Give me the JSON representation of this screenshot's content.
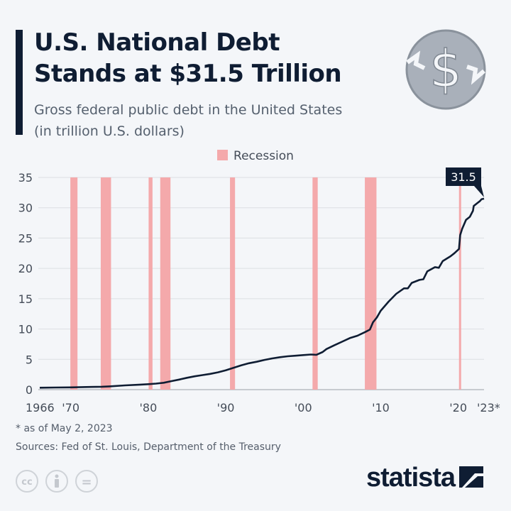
{
  "header": {
    "title_line1": "U.S. National Debt",
    "title_line2": "Stands at $31.5 Trillion",
    "subtitle_line1": "Gross federal public debt in the United States",
    "subtitle_line2": "(in trillion U.S. dollars)",
    "icon": "dollar-coin-icon"
  },
  "colors": {
    "title": "#0f1d33",
    "line": "#0f1d33",
    "recession": "#f4a9ab",
    "grid": "#dcdfe3"
  },
  "chart_data": {
    "type": "line",
    "title": "U.S. National Debt Stands at $31.5 Trillion",
    "subtitle": "Gross federal public debt in the United States (in trillion U.S. dollars)",
    "legend": [
      {
        "name": "Recession",
        "color": "#f4a9ab"
      }
    ],
    "legend_position": "top-center",
    "ylim": [
      0,
      35
    ],
    "yticks": [
      0,
      5,
      10,
      15,
      20,
      25,
      30,
      35
    ],
    "xlim": [
      1966,
      2023.33
    ],
    "xticks": [
      {
        "value": 1966,
        "label": "1966"
      },
      {
        "value": 1970,
        "label": "'70"
      },
      {
        "value": 1980,
        "label": "'80"
      },
      {
        "value": 1990,
        "label": "'90"
      },
      {
        "value": 2000,
        "label": "'00"
      },
      {
        "value": 2010,
        "label": "'10"
      },
      {
        "value": 2020,
        "label": "'20"
      },
      {
        "value": 2023,
        "label": "'23*"
      }
    ],
    "grid": true,
    "recessions": [
      [
        1969.95,
        1970.87
      ],
      [
        1973.87,
        1975.2
      ],
      [
        1980.05,
        1980.55
      ],
      [
        1981.55,
        1982.87
      ],
      [
        1990.55,
        1991.2
      ],
      [
        2001.2,
        2001.87
      ],
      [
        2007.95,
        2009.45
      ],
      [
        2020.1,
        2020.3
      ]
    ],
    "series": [
      {
        "x": [
          1966,
          1968,
          1970,
          1972,
          1974,
          1975,
          1977,
          1979,
          1980,
          1981,
          1982,
          1983,
          1984,
          1985,
          1986,
          1987,
          1988,
          1989,
          1990,
          1991,
          1992,
          1993,
          1994,
          1995,
          1996,
          1997,
          1998,
          1999,
          2000,
          2001,
          2001.7,
          2002.5,
          2003,
          2004,
          2005,
          2006,
          2007,
          2008,
          2008.6,
          2009,
          2009.5,
          2010,
          2011,
          2012,
          2013,
          2013.5,
          2014,
          2015,
          2015.5,
          2016,
          2017,
          2017.5,
          2018,
          2019,
          2019.5,
          2020.1,
          2020.25,
          2020.5,
          2021,
          2021.5,
          2021.9,
          2022,
          2022.5,
          2022.8,
          2023,
          2023.33
        ],
        "values": [
          0.32,
          0.35,
          0.38,
          0.43,
          0.48,
          0.54,
          0.7,
          0.83,
          0.9,
          1.0,
          1.14,
          1.4,
          1.66,
          1.95,
          2.2,
          2.4,
          2.6,
          2.86,
          3.2,
          3.6,
          4.0,
          4.35,
          4.6,
          4.9,
          5.15,
          5.35,
          5.5,
          5.6,
          5.7,
          5.8,
          5.75,
          6.2,
          6.7,
          7.3,
          7.9,
          8.5,
          8.9,
          9.5,
          9.9,
          11.1,
          11.9,
          13.0,
          14.5,
          15.8,
          16.7,
          16.7,
          17.6,
          18.1,
          18.2,
          19.5,
          20.2,
          20.1,
          21.2,
          22.0,
          22.5,
          23.2,
          25.5,
          26.5,
          28.0,
          28.5,
          29.5,
          30.3,
          30.8,
          31.1,
          31.4,
          31.5
        ]
      }
    ],
    "annotation": {
      "label": "31.5",
      "x": 2023.33,
      "y": 31.5
    }
  },
  "footer": {
    "note": "* as of May 2, 2023",
    "sources": "Sources: Fed of St. Louis, Department of the Treasury",
    "license_icons": [
      "cc-icon",
      "attribution-icon",
      "no-derivatives-icon"
    ],
    "cc_label": "cc",
    "nd_label": "=",
    "brand": "statista"
  }
}
